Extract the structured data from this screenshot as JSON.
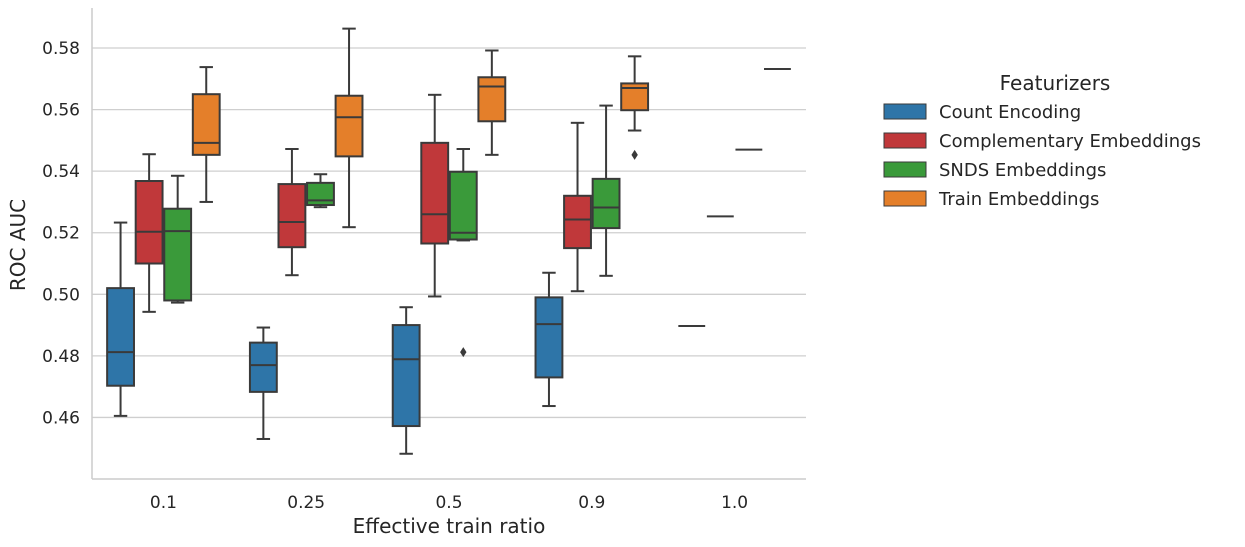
{
  "chart_data": {
    "type": "box",
    "title": "",
    "xlabel": "Effective train ratio",
    "ylabel": "ROC AUC",
    "ylim": [
      0.44,
      0.593
    ],
    "yticks": [
      0.46,
      0.48,
      0.5,
      0.52,
      0.54,
      0.56,
      0.58
    ],
    "ytick_labels": [
      "0.46",
      "0.48",
      "0.50",
      "0.52",
      "0.54",
      "0.56",
      "0.58"
    ],
    "categories": [
      "0.1",
      "0.25",
      "0.5",
      "0.9",
      "1.0"
    ],
    "grid": "horizontal",
    "legend": {
      "title": "Featurizers",
      "placement": "right"
    },
    "series": [
      {
        "name": "Count Encoding",
        "color": "#2e75a8",
        "boxes": [
          {
            "category": "0.1",
            "whisker_low": 0.4605,
            "q1": 0.4703,
            "median": 0.4812,
            "q3": 0.502,
            "whisker_high": 0.5233,
            "outliers": []
          },
          {
            "category": "0.25",
            "whisker_low": 0.453,
            "q1": 0.4683,
            "median": 0.477,
            "q3": 0.4843,
            "whisker_high": 0.4892,
            "outliers": []
          },
          {
            "category": "0.5",
            "whisker_low": 0.4482,
            "q1": 0.4572,
            "median": 0.4789,
            "q3": 0.49,
            "whisker_high": 0.4958,
            "outliers": []
          },
          {
            "category": "0.9",
            "whisker_low": 0.4637,
            "q1": 0.473,
            "median": 0.4903,
            "q3": 0.499,
            "whisker_high": 0.507,
            "outliers": []
          },
          {
            "category": "1.0",
            "whisker_low": 0.4897,
            "q1": 0.4897,
            "median": 0.4897,
            "q3": 0.4897,
            "whisker_high": 0.4897,
            "outliers": []
          }
        ]
      },
      {
        "name": "Complementary Embeddings",
        "color": "#c0383a",
        "boxes": [
          {
            "category": "0.1",
            "whisker_low": 0.4943,
            "q1": 0.51,
            "median": 0.5203,
            "q3": 0.5368,
            "whisker_high": 0.5455,
            "outliers": []
          },
          {
            "category": "0.25",
            "whisker_low": 0.5062,
            "q1": 0.5153,
            "median": 0.5235,
            "q3": 0.5358,
            "whisker_high": 0.5472,
            "outliers": []
          },
          {
            "category": "0.5",
            "whisker_low": 0.4993,
            "q1": 0.5165,
            "median": 0.526,
            "q3": 0.5492,
            "whisker_high": 0.5648,
            "outliers": []
          },
          {
            "category": "0.9",
            "whisker_low": 0.501,
            "q1": 0.515,
            "median": 0.5243,
            "q3": 0.532,
            "whisker_high": 0.5557,
            "outliers": []
          },
          {
            "category": "1.0",
            "whisker_low": 0.5253,
            "q1": 0.5253,
            "median": 0.5253,
            "q3": 0.5253,
            "whisker_high": 0.5253,
            "outliers": []
          }
        ]
      },
      {
        "name": "SNDS Embeddings",
        "color": "#3a9a3a",
        "boxes": [
          {
            "category": "0.1",
            "whisker_low": 0.4973,
            "q1": 0.498,
            "median": 0.5205,
            "q3": 0.5278,
            "whisker_high": 0.5385,
            "outliers": []
          },
          {
            "category": "0.25",
            "whisker_low": 0.5283,
            "q1": 0.529,
            "median": 0.5305,
            "q3": 0.5362,
            "whisker_high": 0.539,
            "outliers": []
          },
          {
            "category": "0.5",
            "whisker_low": 0.5175,
            "q1": 0.5178,
            "median": 0.52,
            "q3": 0.5398,
            "whisker_high": 0.5472,
            "outliers": [
              0.4812
            ]
          },
          {
            "category": "0.9",
            "whisker_low": 0.506,
            "q1": 0.5215,
            "median": 0.5282,
            "q3": 0.5375,
            "whisker_high": 0.5613,
            "outliers": []
          },
          {
            "category": "1.0",
            "whisker_low": 0.547,
            "q1": 0.547,
            "median": 0.547,
            "q3": 0.547,
            "whisker_high": 0.547,
            "outliers": []
          }
        ]
      },
      {
        "name": "Train Embeddings",
        "color": "#e47f2a",
        "boxes": [
          {
            "category": "0.1",
            "whisker_low": 0.53,
            "q1": 0.5453,
            "median": 0.5492,
            "q3": 0.565,
            "whisker_high": 0.5738,
            "outliers": []
          },
          {
            "category": "0.25",
            "whisker_low": 0.5218,
            "q1": 0.5448,
            "median": 0.5575,
            "q3": 0.5645,
            "whisker_high": 0.5863,
            "outliers": []
          },
          {
            "category": "0.5",
            "whisker_low": 0.5453,
            "q1": 0.5562,
            "median": 0.5675,
            "q3": 0.5705,
            "whisker_high": 0.5792,
            "outliers": []
          },
          {
            "category": "0.9",
            "whisker_low": 0.5532,
            "q1": 0.5598,
            "median": 0.567,
            "q3": 0.5685,
            "whisker_high": 0.5773,
            "outliers": [
              0.5453
            ]
          },
          {
            "category": "1.0",
            "whisker_low": 0.5732,
            "q1": 0.5732,
            "median": 0.5732,
            "q3": 0.5732,
            "whisker_high": 0.5732,
            "outliers": []
          }
        ]
      }
    ]
  }
}
